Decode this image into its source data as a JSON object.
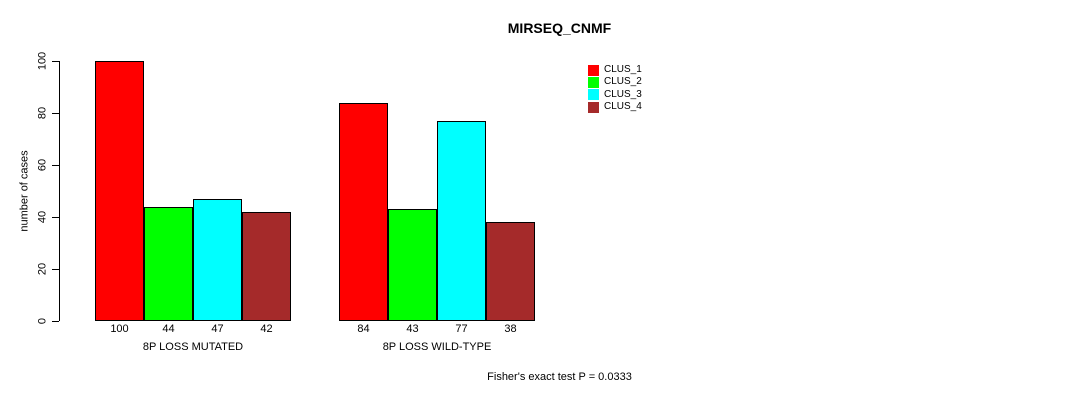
{
  "chart_data": {
    "type": "bar",
    "title": "MIRSEQ_CNMF",
    "ylabel": "number of cases",
    "xlabel": "",
    "categories": [
      "8P LOSS MUTATED",
      "8P LOSS WILD-TYPE"
    ],
    "series": [
      {
        "name": "CLUS_1",
        "color": "#ff0000",
        "values": [
          100,
          84
        ]
      },
      {
        "name": "CLUS_2",
        "color": "#00ff00",
        "values": [
          44,
          43
        ]
      },
      {
        "name": "CLUS_3",
        "color": "#00ffff",
        "values": [
          47,
          77
        ]
      },
      {
        "name": "CLUS_4",
        "color": "#a52a2a",
        "values": [
          42,
          38
        ]
      }
    ],
    "bar_value_labels": [
      [
        "100",
        "44",
        "47",
        "42"
      ],
      [
        "84",
        "43",
        "77",
        "38"
      ]
    ],
    "yticks": [
      0,
      20,
      40,
      60,
      80,
      100
    ],
    "ylim": [
      0,
      100
    ],
    "grid": false,
    "legend_position": "right-inside-top",
    "bar_border_color": "#000000",
    "annotation": "Fisher's exact test P = 0.0333"
  }
}
